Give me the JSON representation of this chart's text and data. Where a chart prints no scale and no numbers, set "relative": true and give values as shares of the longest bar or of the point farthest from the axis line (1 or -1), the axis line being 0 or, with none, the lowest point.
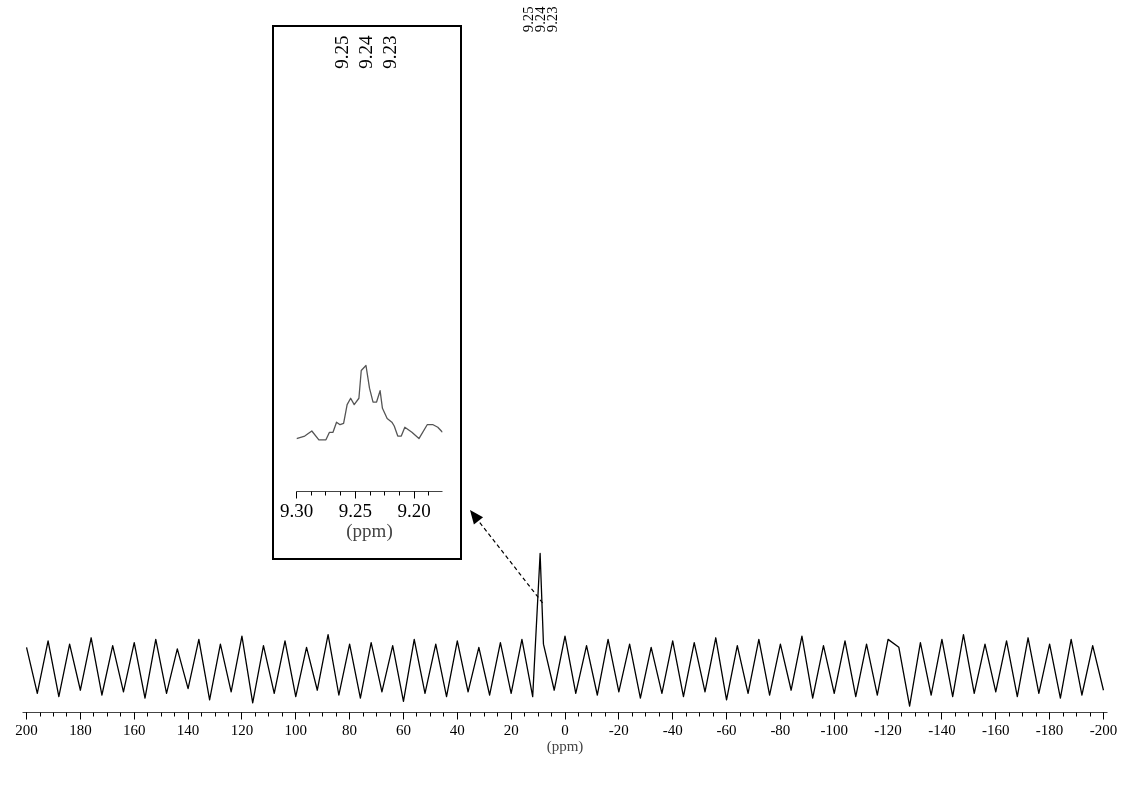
{
  "chart_data": [
    {
      "type": "line",
      "relative": true,
      "color": "#000000",
      "xlabel": "(ppm)",
      "tick_labels": "x",
      "xlim": [
        201.5,
        -201.5
      ],
      "xticks": [
        200,
        180,
        160,
        140,
        120,
        100,
        80,
        60,
        40,
        20,
        0,
        -20,
        -40,
        -60,
        -80,
        -100,
        -120,
        -140,
        -160,
        -180,
        -200
      ],
      "x": [
        200,
        196,
        192,
        188,
        184,
        180,
        176,
        172,
        168,
        164,
        160,
        156,
        152,
        148,
        144,
        140,
        136,
        132,
        128,
        124,
        120,
        116,
        112,
        108,
        104,
        100,
        96,
        92,
        88,
        84,
        80,
        76,
        72,
        68,
        64,
        60,
        56,
        52,
        48,
        44,
        40,
        36,
        32,
        28,
        24,
        20,
        16,
        12,
        9.24,
        8,
        4,
        0,
        -4,
        -8,
        -12,
        -16,
        -20,
        -24,
        -28,
        -32,
        -36,
        -40,
        -44,
        -48,
        -52,
        -56,
        -60,
        -64,
        -68,
        -72,
        -76,
        -80,
        -84,
        -88,
        -92,
        -96,
        -100,
        -104,
        -108,
        -112,
        -116,
        -120,
        -124,
        -128,
        -132,
        -136,
        -140,
        -144,
        -148,
        -152,
        -156,
        -160,
        -164,
        -168,
        -172,
        -176,
        -180,
        -184,
        -188,
        -192,
        -196,
        -200
      ],
      "values": [
        0.41,
        0.12,
        0.45,
        0.1,
        0.43,
        0.14,
        0.47,
        0.11,
        0.42,
        0.13,
        0.44,
        0.09,
        0.46,
        0.12,
        0.4,
        0.15,
        0.46,
        0.08,
        0.43,
        0.13,
        0.48,
        0.06,
        0.42,
        0.12,
        0.45,
        0.1,
        0.41,
        0.14,
        0.49,
        0.11,
        0.43,
        0.09,
        0.44,
        0.13,
        0.42,
        0.07,
        0.46,
        0.12,
        0.43,
        0.1,
        0.45,
        0.13,
        0.41,
        0.11,
        0.44,
        0.12,
        0.46,
        0.1,
        1,
        0.43,
        0.14,
        0.48,
        0.12,
        0.42,
        0.11,
        0.46,
        0.13,
        0.43,
        0.09,
        0.41,
        0.12,
        0.45,
        0.1,
        0.44,
        0.13,
        0.47,
        0.08,
        0.42,
        0.12,
        0.46,
        0.11,
        0.43,
        0.14,
        0.48,
        0.09,
        0.42,
        0.12,
        0.45,
        0.1,
        0.43,
        0.11,
        0.46,
        0.41,
        0.04,
        0.44,
        0.11,
        0.46,
        0.1,
        0.49,
        0.12,
        0.43,
        0.13,
        0.45,
        0.1,
        0.47,
        0.12,
        0.43,
        0.09,
        0.46,
        0.11,
        0.42,
        0.14
      ],
      "annotations": [
        "9.25",
        "9.24",
        "9.23"
      ]
    },
    {
      "type": "line",
      "relative": true,
      "color": "#555555",
      "xlabel": "(ppm)",
      "tick_labels": "x",
      "xlim": [
        9.3,
        9.176
      ],
      "xticks": [
        {
          "value": 9.3,
          "label": "9.30"
        },
        9.25,
        {
          "value": 9.2,
          "label": "9.20"
        }
      ],
      "x": [
        9.3,
        9.293,
        9.287,
        9.281,
        9.275,
        9.272,
        9.269,
        9.266,
        9.263,
        9.26,
        9.257,
        9.254,
        9.251,
        9.247,
        9.245,
        9.241,
        9.238,
        9.235,
        9.232,
        9.229,
        9.227,
        9.223,
        9.219,
        9.217,
        9.214,
        9.211,
        9.208,
        9.202,
        9.196,
        9.189,
        9.184,
        9.18,
        9.176
      ],
      "values": [
        0.42,
        0.44,
        0.48,
        0.41,
        0.41,
        0.47,
        0.47,
        0.55,
        0.53,
        0.54,
        0.69,
        0.74,
        0.69,
        0.74,
        0.96,
        1,
        0.82,
        0.71,
        0.71,
        0.8,
        0.66,
        0.58,
        0.55,
        0.52,
        0.44,
        0.44,
        0.51,
        0.47,
        0.42,
        0.53,
        0.53,
        0.51,
        0.47
      ],
      "annotations": [
        "9.25",
        "9.24",
        "9.23"
      ]
    }
  ]
}
